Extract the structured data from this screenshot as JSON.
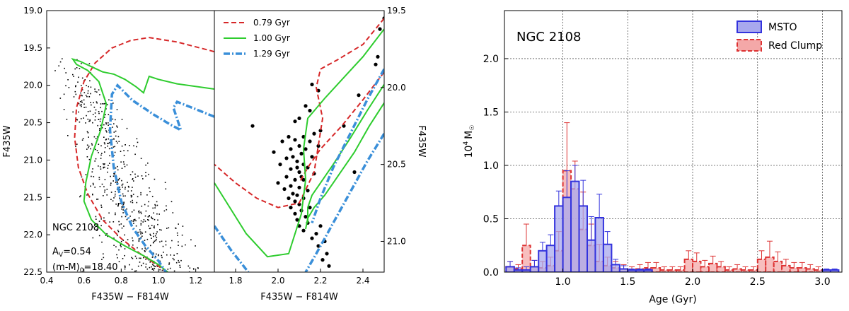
{
  "chart_data": [
    {
      "type": "scatter",
      "panel": "cmd-full",
      "xlabel": "F435W − F814W",
      "ylabel": "F435W",
      "xlim": [
        0.4,
        1.3
      ],
      "ylim": [
        22.5,
        19.0
      ],
      "xticks": [
        "0.4",
        "0.6",
        "0.8",
        "1.0",
        "1.2"
      ],
      "yticks": [
        "19.0",
        "19.5",
        "20.0",
        "20.5",
        "21.0",
        "21.5",
        "22.0",
        "22.5"
      ],
      "annotations": [
        "NGC 2108",
        "A",
        "V",
        "=0.54",
        "(m-M)",
        "0",
        "=18.40"
      ],
      "series": [
        {
          "name": "0.79 Gyr",
          "color": "#d62728",
          "style": "dashed",
          "x": [
            1.3,
            1.1,
            0.95,
            0.85,
            0.75,
            0.66,
            0.6,
            0.56,
            0.55,
            0.57,
            0.62,
            0.7,
            0.8,
            0.9,
            1.0,
            1.04
          ],
          "y": [
            19.55,
            19.42,
            19.36,
            19.4,
            19.5,
            19.7,
            19.95,
            20.3,
            20.7,
            21.1,
            21.45,
            21.8,
            22.05,
            22.25,
            22.42,
            22.5
          ]
        },
        {
          "name": "1.00 Gyr",
          "color": "#2ecc2e",
          "style": "solid",
          "x": [
            1.3,
            1.1,
            1.0,
            0.95,
            0.92,
            0.88,
            0.82,
            0.76,
            0.7,
            0.64,
            0.58,
            0.54,
            0.56,
            0.62,
            0.68,
            0.72,
            0.69,
            0.64,
            0.61,
            0.6,
            0.64,
            0.72,
            0.82,
            0.92,
            1.0,
            1.05
          ],
          "y": [
            20.05,
            19.98,
            19.92,
            19.88,
            20.1,
            20.02,
            19.92,
            19.85,
            19.82,
            19.75,
            19.68,
            19.65,
            19.72,
            19.8,
            19.95,
            20.25,
            20.6,
            20.95,
            21.3,
            21.55,
            21.8,
            22.0,
            22.15,
            22.28,
            22.4,
            22.5
          ]
        },
        {
          "name": "1.29 Gyr",
          "color": "#3a8fd9",
          "style": "dashdot",
          "x": [
            1.3,
            1.18,
            1.1,
            1.08,
            1.12,
            1.06,
            0.98,
            0.92,
            0.86,
            0.82,
            0.78,
            0.75,
            0.74,
            0.76,
            0.8,
            0.86,
            0.93,
            1.0,
            1.04
          ],
          "y": [
            20.42,
            20.3,
            20.22,
            20.3,
            20.6,
            20.52,
            20.4,
            20.3,
            20.2,
            20.1,
            20.0,
            20.12,
            20.6,
            21.1,
            21.55,
            21.9,
            22.15,
            22.35,
            22.5
          ]
        }
      ]
    },
    {
      "type": "scatter",
      "panel": "cmd-zoom",
      "xlabel": "F435W − F814W",
      "ylabel": "F435W",
      "xlim": [
        1.7,
        2.5
      ],
      "ylim": [
        21.2,
        19.5
      ],
      "xticks": [
        "1.8",
        "2.0",
        "2.2",
        "2.4"
      ],
      "yticks": [
        "19.5",
        "20.0",
        "20.5",
        "21.0"
      ],
      "series": [
        {
          "name": "0.79 Gyr",
          "color": "#d62728",
          "style": "dashed",
          "x": [
            2.5,
            2.4,
            2.28,
            2.2,
            2.18,
            2.21,
            2.17,
            2.1,
            2.0,
            1.9,
            1.8,
            1.7
          ],
          "y": [
            19.55,
            19.72,
            19.82,
            19.88,
            20.0,
            20.2,
            20.55,
            20.75,
            20.78,
            20.72,
            20.62,
            20.5
          ],
          "x2": [
            2.5,
            2.4,
            2.3,
            2.2,
            2.14,
            2.1
          ],
          "y2": [
            19.9,
            20.08,
            20.25,
            20.4,
            20.52,
            20.62
          ]
        },
        {
          "name": "1.00 Gyr",
          "color": "#2ecc2e",
          "style": "solid",
          "x": [
            2.5,
            2.4,
            2.3,
            2.22,
            2.14,
            2.12,
            2.13,
            2.11,
            2.05,
            1.95,
            1.85,
            1.7
          ],
          "y": [
            19.62,
            19.8,
            19.95,
            20.07,
            20.2,
            20.4,
            20.6,
            20.82,
            21.08,
            21.1,
            20.95,
            20.62
          ],
          "x2": [
            2.5,
            2.42,
            2.34,
            2.26,
            2.2,
            2.16,
            2.14,
            2.14
          ],
          "y2": [
            19.98,
            20.15,
            20.33,
            20.5,
            20.62,
            20.7,
            20.78,
            20.88
          ],
          "x3": [
            2.5,
            2.43,
            2.36,
            2.28,
            2.22,
            2.17,
            2.14,
            2.13
          ],
          "y3": [
            20.1,
            20.25,
            20.42,
            20.58,
            20.7,
            20.78,
            20.85,
            20.92
          ]
        },
        {
          "name": "1.29 Gyr",
          "color": "#3a8fd9",
          "style": "dashdot",
          "x": [
            2.5,
            2.42,
            2.34,
            2.26,
            2.2,
            2.16
          ],
          "y": [
            19.88,
            20.08,
            20.3,
            20.52,
            20.72,
            20.88
          ],
          "x2": [
            2.5,
            2.42,
            2.34,
            2.26,
            2.18,
            2.13
          ],
          "y2": [
            20.3,
            20.48,
            20.68,
            20.88,
            21.08,
            21.2
          ],
          "x3": [
            1.7,
            1.78,
            1.86
          ],
          "y3": [
            20.9,
            21.06,
            21.2
          ]
        }
      ],
      "points": [
        [
          2.5,
          19.55
        ],
        [
          2.48,
          19.62
        ],
        [
          2.47,
          19.8
        ],
        [
          2.46,
          19.85
        ],
        [
          2.38,
          20.05
        ],
        [
          2.31,
          20.25
        ],
        [
          2.36,
          20.55
        ],
        [
          2.16,
          19.98
        ],
        [
          2.19,
          20.02
        ],
        [
          2.13,
          20.12
        ],
        [
          2.15,
          20.15
        ],
        [
          1.88,
          20.25
        ],
        [
          2.1,
          20.2
        ],
        [
          2.08,
          20.22
        ],
        [
          2.2,
          20.28
        ],
        [
          2.17,
          20.3
        ],
        [
          2.05,
          20.32
        ],
        [
          2.12,
          20.32
        ],
        [
          2.08,
          20.34
        ],
        [
          2.15,
          20.35
        ],
        [
          2.02,
          20.35
        ],
        [
          2.1,
          20.38
        ],
        [
          2.19,
          20.38
        ],
        [
          2.06,
          20.4
        ],
        [
          2.13,
          20.4
        ],
        [
          1.98,
          20.42
        ],
        [
          2.11,
          20.43
        ],
        [
          2.07,
          20.45
        ],
        [
          2.16,
          20.45
        ],
        [
          2.04,
          20.46
        ],
        [
          2.09,
          20.48
        ],
        [
          2.12,
          20.5
        ],
        [
          2.01,
          20.5
        ],
        [
          2.14,
          20.52
        ],
        [
          2.06,
          20.53
        ],
        [
          2.1,
          20.55
        ],
        [
          2.17,
          20.56
        ],
        [
          2.04,
          20.58
        ],
        [
          2.08,
          20.6
        ],
        [
          2.12,
          20.6
        ],
        [
          2.0,
          20.62
        ],
        [
          2.06,
          20.64
        ],
        [
          2.1,
          20.65
        ],
        [
          2.03,
          20.66
        ],
        [
          2.14,
          20.67
        ],
        [
          2.07,
          20.69
        ],
        [
          2.09,
          20.7
        ],
        [
          2.05,
          20.72
        ],
        [
          2.12,
          20.72
        ],
        [
          2.08,
          20.74
        ],
        [
          2.1,
          20.76
        ],
        [
          2.06,
          20.78
        ],
        [
          2.15,
          20.78
        ],
        [
          2.11,
          20.8
        ],
        [
          2.08,
          20.82
        ],
        [
          2.13,
          20.84
        ],
        [
          2.09,
          20.86
        ],
        [
          2.14,
          20.88
        ],
        [
          2.1,
          20.9
        ],
        [
          2.2,
          20.9
        ],
        [
          2.12,
          20.93
        ],
        [
          2.18,
          20.95
        ],
        [
          2.16,
          20.98
        ],
        [
          2.22,
          21.0
        ],
        [
          2.19,
          21.03
        ],
        [
          2.23,
          21.08
        ],
        [
          2.21,
          21.12
        ],
        [
          2.24,
          21.16
        ],
        [
          2.09,
          20.52
        ],
        [
          2.11,
          20.58
        ]
      ]
    },
    {
      "type": "bar",
      "panel": "age-distribution",
      "title": "NGC 2108",
      "xlabel": "Age (Gyr)",
      "ylabel": "10",
      "ylabel_exp": "4",
      "ylabel_unit": "M",
      "xlim": [
        0.55,
        3.15
      ],
      "ylim": [
        0,
        2.45
      ],
      "bin_width": 0.0625,
      "xticks": [
        "1.0",
        "1.5",
        "2.0",
        "2.5",
        "3.0"
      ],
      "yticks": [
        "0.0",
        "0.5",
        "1.0",
        "1.5",
        "2.0"
      ],
      "grid": true,
      "legend_position": "top-right",
      "series": [
        {
          "name": "MSTO",
          "color": "#3333dd",
          "fill": "#a8a8ee",
          "left": [
            0.5625,
            0.625,
            0.6875,
            0.75,
            0.8125,
            0.875,
            0.9375,
            1.0,
            1.0625,
            1.125,
            1.1875,
            1.25,
            1.3125,
            1.375,
            1.4375,
            1.5,
            1.5625,
            1.625,
            3.0,
            3.0625
          ],
          "values": [
            0.05,
            0.02,
            0.02,
            0.05,
            0.2,
            0.25,
            0.62,
            0.7,
            0.85,
            0.62,
            0.3,
            0.51,
            0.26,
            0.07,
            0.03,
            0.02,
            0.02,
            0.02,
            0.02,
            0.02
          ],
          "errors": [
            0.05,
            0.02,
            0.03,
            0.06,
            0.08,
            0.1,
            0.14,
            0.25,
            0.15,
            0.24,
            0.22,
            0.22,
            0.12,
            0.05,
            0.03,
            0.01,
            0.01,
            0.01,
            0.01,
            0.01
          ]
        },
        {
          "name": "Red Clump",
          "color": "#dd3333",
          "fill": "#f4a8a8",
          "left": [
            0.5625,
            0.625,
            0.6875,
            0.75,
            0.8125,
            0.875,
            0.9375,
            1.0,
            1.0625,
            1.125,
            1.1875,
            1.25,
            1.3125,
            1.375,
            1.4375,
            1.5,
            1.5625,
            1.625,
            1.6875,
            1.75,
            1.8125,
            1.875,
            1.9375,
            2.0,
            2.0625,
            2.125,
            2.1875,
            2.25,
            2.3125,
            2.375,
            2.4375,
            2.5,
            2.5625,
            2.625,
            2.6875,
            2.75,
            2.8125,
            2.875,
            2.9375
          ],
          "values": [
            0.05,
            0.03,
            0.25,
            0.05,
            0.04,
            0.06,
            0.2,
            0.95,
            0.78,
            0.4,
            0.25,
            0.1,
            0.06,
            0.04,
            0.03,
            0.02,
            0.03,
            0.04,
            0.04,
            0.02,
            0.02,
            0.02,
            0.12,
            0.1,
            0.05,
            0.08,
            0.05,
            0.02,
            0.03,
            0.02,
            0.02,
            0.12,
            0.14,
            0.1,
            0.06,
            0.04,
            0.04,
            0.03,
            0.02
          ],
          "errors": [
            0.05,
            0.04,
            0.2,
            0.06,
            0.06,
            0.08,
            0.18,
            0.45,
            0.26,
            0.35,
            0.2,
            0.16,
            0.08,
            0.06,
            0.04,
            0.03,
            0.04,
            0.05,
            0.05,
            0.03,
            0.03,
            0.03,
            0.08,
            0.08,
            0.06,
            0.07,
            0.05,
            0.03,
            0.04,
            0.03,
            0.03,
            0.08,
            0.15,
            0.09,
            0.06,
            0.05,
            0.05,
            0.04,
            0.03
          ]
        }
      ]
    }
  ]
}
